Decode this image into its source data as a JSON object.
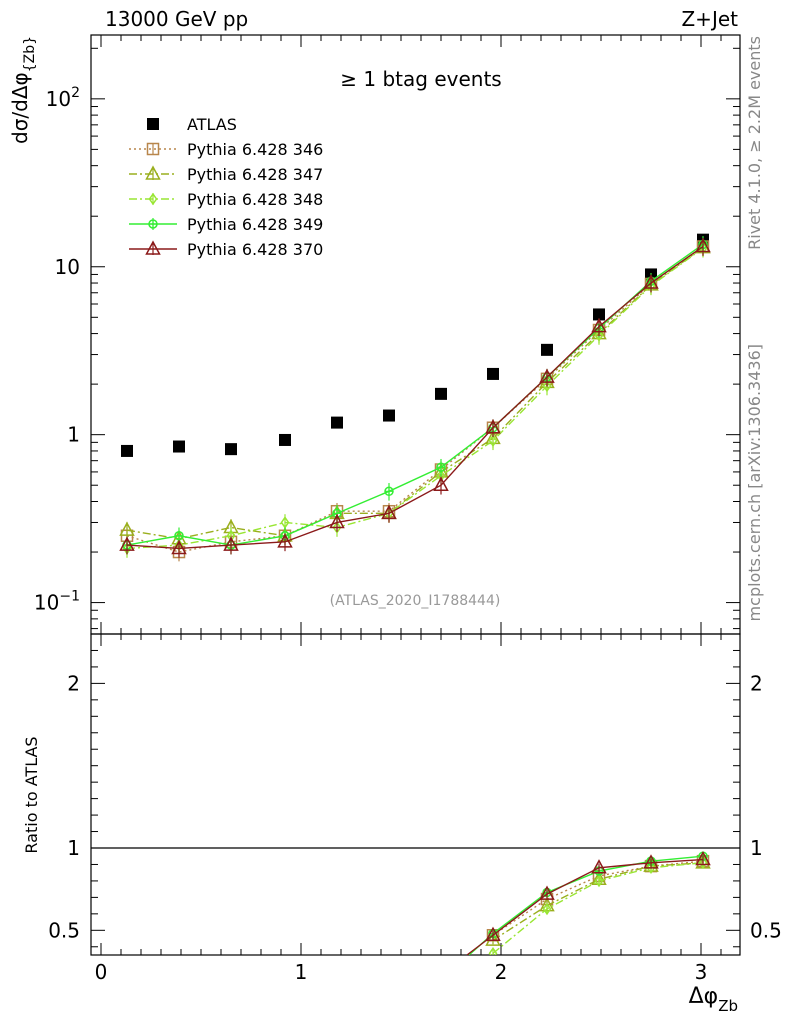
{
  "header": {
    "left": "13000 GeV pp",
    "right": "Z+Jet"
  },
  "side_labels": {
    "rivet": "Rivet 4.1.0, ≥ 2.2M events",
    "mcplots": "mcplots.cern.ch [arXiv:1306.3436]"
  },
  "chart_data": [
    {
      "type": "scatter",
      "title": "≥ 1 btag events",
      "analysis_label": "(ATLAS_2020_I1788444)",
      "ylabel": "dσ/dΔφ_{Zb}",
      "xlabel": "Δφ_{Zb}",
      "yscale": "log",
      "ylim": [
        0.065,
        240
      ],
      "xlim": [
        -0.05,
        3.2
      ],
      "yticks": [
        {
          "value": 0.1,
          "base": "10",
          "exp": "−1"
        },
        {
          "value": 1,
          "label": "1"
        },
        {
          "value": 10,
          "label": "10"
        },
        {
          "value": 100,
          "base": "10",
          "exp": "2"
        }
      ],
      "x": [
        0.13,
        0.39,
        0.65,
        0.92,
        1.18,
        1.44,
        1.7,
        1.96,
        2.23,
        2.49,
        2.75,
        3.01
      ],
      "series": [
        {
          "name": "ATLAS",
          "color": "#000000",
          "marker": "square-filled",
          "values": [
            0.8,
            0.85,
            0.82,
            0.93,
            1.18,
            1.3,
            1.75,
            2.3,
            3.2,
            5.2,
            9.0,
            14.5
          ]
        },
        {
          "name": "Pythia 6.428 346",
          "color": "#b8864b",
          "marker": "square-open",
          "dash": "2,3",
          "values": [
            0.25,
            0.2,
            0.23,
            0.25,
            0.35,
            0.35,
            0.62,
            1.1,
            2.15,
            4.2,
            7.9,
            13.2
          ]
        },
        {
          "name": "Pythia 6.428 347",
          "color": "#9aaf1e",
          "marker": "triangle-open",
          "dash": "8,3,2,3",
          "values": [
            0.27,
            0.24,
            0.28,
            0.25,
            0.34,
            0.34,
            0.6,
            0.95,
            2.05,
            4.0,
            7.8,
            13.0
          ]
        },
        {
          "name": "Pythia 6.428 348",
          "color": "#99e633",
          "marker": "diamond-open",
          "dash": "8,3,2,3",
          "values": [
            0.21,
            0.22,
            0.25,
            0.3,
            0.28,
            0.34,
            0.57,
            0.92,
            1.95,
            3.9,
            7.7,
            12.9
          ]
        },
        {
          "name": "Pythia 6.428 349",
          "color": "#33ee33",
          "marker": "circle-cross",
          "dash": "",
          "values": [
            0.22,
            0.25,
            0.22,
            0.25,
            0.34,
            0.46,
            0.64,
            1.1,
            2.2,
            4.3,
            8.2,
            13.6
          ]
        },
        {
          "name": "Pythia 6.428 370",
          "color": "#8b1a1a",
          "marker": "triangle-open",
          "dash": "",
          "values": [
            0.22,
            0.21,
            0.22,
            0.23,
            0.3,
            0.34,
            0.5,
            1.1,
            2.2,
            4.4,
            8.0,
            13.2
          ]
        }
      ]
    },
    {
      "type": "line",
      "ylabel": "Ratio to ATLAS",
      "ylim": [
        0.35,
        2.3
      ],
      "yticks": [
        0.5,
        1,
        2
      ],
      "x": [
        1.96,
        2.23,
        2.49,
        2.75,
        3.01
      ],
      "series": [
        {
          "name": "Pythia 6.428 346",
          "values": [
            0.47,
            0.69,
            0.83,
            0.89,
            0.92
          ]
        },
        {
          "name": "Pythia 6.428 347",
          "values": [
            0.44,
            0.65,
            0.81,
            0.89,
            0.91
          ]
        },
        {
          "name": "Pythia 6.428 348",
          "values": [
            0.36,
            0.63,
            0.8,
            0.88,
            0.91
          ]
        },
        {
          "name": "Pythia 6.428 349",
          "values": [
            0.48,
            0.73,
            0.86,
            0.92,
            0.95
          ]
        },
        {
          "name": "Pythia 6.428 370",
          "values": [
            0.47,
            0.72,
            0.88,
            0.91,
            0.93
          ]
        }
      ],
      "off_scale_left": [
        {
          "name": "Pythia 6.428 349",
          "x": 1.84,
          "value": 0.35
        },
        {
          "name": "Pythia 6.428 370",
          "x": 1.83,
          "value": 0.35
        }
      ]
    }
  ]
}
